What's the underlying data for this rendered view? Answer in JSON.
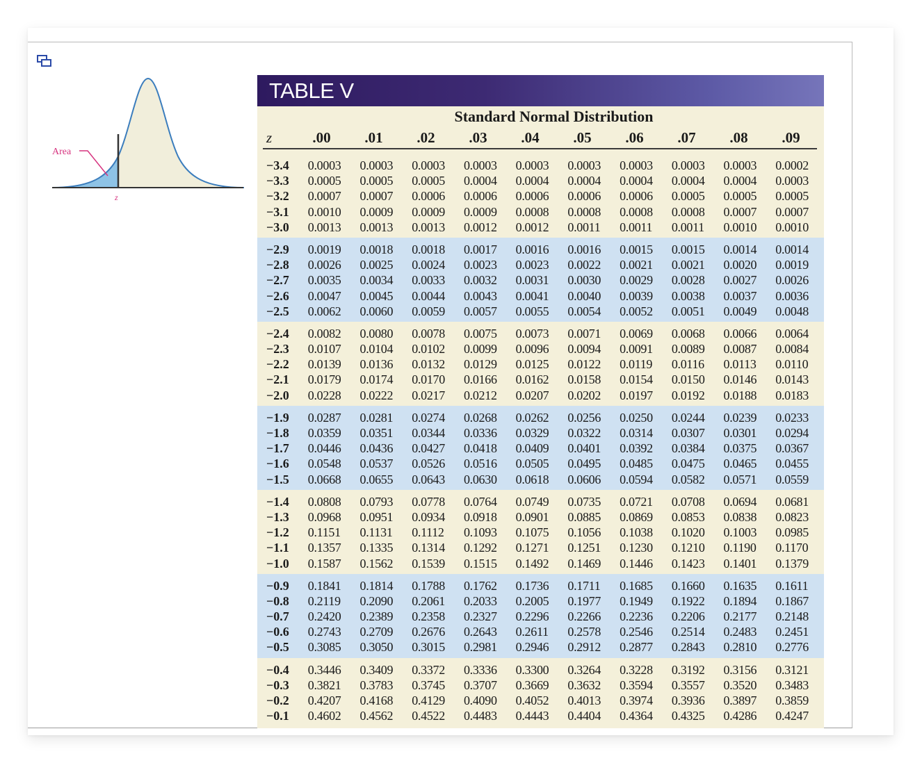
{
  "icon": {
    "popout": "popout-window-icon"
  },
  "figure": {
    "area_label": "Area",
    "z_label": "z",
    "colors": {
      "curve": "#3b7dbd",
      "shaded": "#8ec3e6",
      "fill": "#f1eedb",
      "pointer": "#d6337f"
    }
  },
  "table": {
    "title": "TABLE V",
    "subtitle": "Standard Normal Distribution",
    "z_header": "z",
    "columns": [
      ".00",
      ".01",
      ".02",
      ".03",
      ".04",
      ".05",
      ".06",
      ".07",
      ".08",
      ".09"
    ],
    "blocks": [
      {
        "rows": [
          {
            "z": "−3.4",
            "v": [
              "0.0003",
              "0.0003",
              "0.0003",
              "0.0003",
              "0.0003",
              "0.0003",
              "0.0003",
              "0.0003",
              "0.0003",
              "0.0002"
            ]
          },
          {
            "z": "−3.3",
            "v": [
              "0.0005",
              "0.0005",
              "0.0005",
              "0.0004",
              "0.0004",
              "0.0004",
              "0.0004",
              "0.0004",
              "0.0004",
              "0.0003"
            ]
          },
          {
            "z": "−3.2",
            "v": [
              "0.0007",
              "0.0007",
              "0.0006",
              "0.0006",
              "0.0006",
              "0.0006",
              "0.0006",
              "0.0005",
              "0.0005",
              "0.0005"
            ]
          },
          {
            "z": "−3.1",
            "v": [
              "0.0010",
              "0.0009",
              "0.0009",
              "0.0009",
              "0.0008",
              "0.0008",
              "0.0008",
              "0.0008",
              "0.0007",
              "0.0007"
            ]
          },
          {
            "z": "−3.0",
            "v": [
              "0.0013",
              "0.0013",
              "0.0013",
              "0.0012",
              "0.0012",
              "0.0011",
              "0.0011",
              "0.0011",
              "0.0010",
              "0.0010"
            ]
          }
        ]
      },
      {
        "rows": [
          {
            "z": "−2.9",
            "v": [
              "0.0019",
              "0.0018",
              "0.0018",
              "0.0017",
              "0.0016",
              "0.0016",
              "0.0015",
              "0.0015",
              "0.0014",
              "0.0014"
            ]
          },
          {
            "z": "−2.8",
            "v": [
              "0.0026",
              "0.0025",
              "0.0024",
              "0.0023",
              "0.0023",
              "0.0022",
              "0.0021",
              "0.0021",
              "0.0020",
              "0.0019"
            ]
          },
          {
            "z": "−2.7",
            "v": [
              "0.0035",
              "0.0034",
              "0.0033",
              "0.0032",
              "0.0031",
              "0.0030",
              "0.0029",
              "0.0028",
              "0.0027",
              "0.0026"
            ]
          },
          {
            "z": "−2.6",
            "v": [
              "0.0047",
              "0.0045",
              "0.0044",
              "0.0043",
              "0.0041",
              "0.0040",
              "0.0039",
              "0.0038",
              "0.0037",
              "0.0036"
            ]
          },
          {
            "z": "−2.5",
            "v": [
              "0.0062",
              "0.0060",
              "0.0059",
              "0.0057",
              "0.0055",
              "0.0054",
              "0.0052",
              "0.0051",
              "0.0049",
              "0.0048"
            ]
          }
        ]
      },
      {
        "rows": [
          {
            "z": "−2.4",
            "v": [
              "0.0082",
              "0.0080",
              "0.0078",
              "0.0075",
              "0.0073",
              "0.0071",
              "0.0069",
              "0.0068",
              "0.0066",
              "0.0064"
            ]
          },
          {
            "z": "−2.3",
            "v": [
              "0.0107",
              "0.0104",
              "0.0102",
              "0.0099",
              "0.0096",
              "0.0094",
              "0.0091",
              "0.0089",
              "0.0087",
              "0.0084"
            ]
          },
          {
            "z": "−2.2",
            "v": [
              "0.0139",
              "0.0136",
              "0.0132",
              "0.0129",
              "0.0125",
              "0.0122",
              "0.0119",
              "0.0116",
              "0.0113",
              "0.0110"
            ]
          },
          {
            "z": "−2.1",
            "v": [
              "0.0179",
              "0.0174",
              "0.0170",
              "0.0166",
              "0.0162",
              "0.0158",
              "0.0154",
              "0.0150",
              "0.0146",
              "0.0143"
            ]
          },
          {
            "z": "−2.0",
            "v": [
              "0.0228",
              "0.0222",
              "0.0217",
              "0.0212",
              "0.0207",
              "0.0202",
              "0.0197",
              "0.0192",
              "0.0188",
              "0.0183"
            ]
          }
        ]
      },
      {
        "rows": [
          {
            "z": "−1.9",
            "v": [
              "0.0287",
              "0.0281",
              "0.0274",
              "0.0268",
              "0.0262",
              "0.0256",
              "0.0250",
              "0.0244",
              "0.0239",
              "0.0233"
            ]
          },
          {
            "z": "−1.8",
            "v": [
              "0.0359",
              "0.0351",
              "0.0344",
              "0.0336",
              "0.0329",
              "0.0322",
              "0.0314",
              "0.0307",
              "0.0301",
              "0.0294"
            ]
          },
          {
            "z": "−1.7",
            "v": [
              "0.0446",
              "0.0436",
              "0.0427",
              "0.0418",
              "0.0409",
              "0.0401",
              "0.0392",
              "0.0384",
              "0.0375",
              "0.0367"
            ]
          },
          {
            "z": "−1.6",
            "v": [
              "0.0548",
              "0.0537",
              "0.0526",
              "0.0516",
              "0.0505",
              "0.0495",
              "0.0485",
              "0.0475",
              "0.0465",
              "0.0455"
            ]
          },
          {
            "z": "−1.5",
            "v": [
              "0.0668",
              "0.0655",
              "0.0643",
              "0.0630",
              "0.0618",
              "0.0606",
              "0.0594",
              "0.0582",
              "0.0571",
              "0.0559"
            ]
          }
        ]
      },
      {
        "rows": [
          {
            "z": "−1.4",
            "v": [
              "0.0808",
              "0.0793",
              "0.0778",
              "0.0764",
              "0.0749",
              "0.0735",
              "0.0721",
              "0.0708",
              "0.0694",
              "0.0681"
            ]
          },
          {
            "z": "−1.3",
            "v": [
              "0.0968",
              "0.0951",
              "0.0934",
              "0.0918",
              "0.0901",
              "0.0885",
              "0.0869",
              "0.0853",
              "0.0838",
              "0.0823"
            ]
          },
          {
            "z": "−1.2",
            "v": [
              "0.1151",
              "0.1131",
              "0.1112",
              "0.1093",
              "0.1075",
              "0.1056",
              "0.1038",
              "0.1020",
              "0.1003",
              "0.0985"
            ]
          },
          {
            "z": "−1.1",
            "v": [
              "0.1357",
              "0.1335",
              "0.1314",
              "0.1292",
              "0.1271",
              "0.1251",
              "0.1230",
              "0.1210",
              "0.1190",
              "0.1170"
            ]
          },
          {
            "z": "−1.0",
            "v": [
              "0.1587",
              "0.1562",
              "0.1539",
              "0.1515",
              "0.1492",
              "0.1469",
              "0.1446",
              "0.1423",
              "0.1401",
              "0.1379"
            ]
          }
        ]
      },
      {
        "rows": [
          {
            "z": "−0.9",
            "v": [
              "0.1841",
              "0.1814",
              "0.1788",
              "0.1762",
              "0.1736",
              "0.1711",
              "0.1685",
              "0.1660",
              "0.1635",
              "0.1611"
            ]
          },
          {
            "z": "−0.8",
            "v": [
              "0.2119",
              "0.2090",
              "0.2061",
              "0.2033",
              "0.2005",
              "0.1977",
              "0.1949",
              "0.1922",
              "0.1894",
              "0.1867"
            ]
          },
          {
            "z": "−0.7",
            "v": [
              "0.2420",
              "0.2389",
              "0.2358",
              "0.2327",
              "0.2296",
              "0.2266",
              "0.2236",
              "0.2206",
              "0.2177",
              "0.2148"
            ]
          },
          {
            "z": "−0.6",
            "v": [
              "0.2743",
              "0.2709",
              "0.2676",
              "0.2643",
              "0.2611",
              "0.2578",
              "0.2546",
              "0.2514",
              "0.2483",
              "0.2451"
            ]
          },
          {
            "z": "−0.5",
            "v": [
              "0.3085",
              "0.3050",
              "0.3015",
              "0.2981",
              "0.2946",
              "0.2912",
              "0.2877",
              "0.2843",
              "0.2810",
              "0.2776"
            ]
          }
        ]
      },
      {
        "rows": [
          {
            "z": "−0.4",
            "v": [
              "0.3446",
              "0.3409",
              "0.3372",
              "0.3336",
              "0.3300",
              "0.3264",
              "0.3228",
              "0.3192",
              "0.3156",
              "0.3121"
            ]
          },
          {
            "z": "−0.3",
            "v": [
              "0.3821",
              "0.3783",
              "0.3745",
              "0.3707",
              "0.3669",
              "0.3632",
              "0.3594",
              "0.3557",
              "0.3520",
              "0.3483"
            ]
          },
          {
            "z": "−0.2",
            "v": [
              "0.4207",
              "0.4168",
              "0.4129",
              "0.4090",
              "0.4052",
              "0.4013",
              "0.3974",
              "0.3936",
              "0.3897",
              "0.3859"
            ]
          },
          {
            "z": "−0.1",
            "v": [
              "0.4602",
              "0.4562",
              "0.4522",
              "0.4483",
              "0.4443",
              "0.4404",
              "0.4364",
              "0.4325",
              "0.4286",
              "0.4247"
            ]
          }
        ]
      }
    ]
  }
}
